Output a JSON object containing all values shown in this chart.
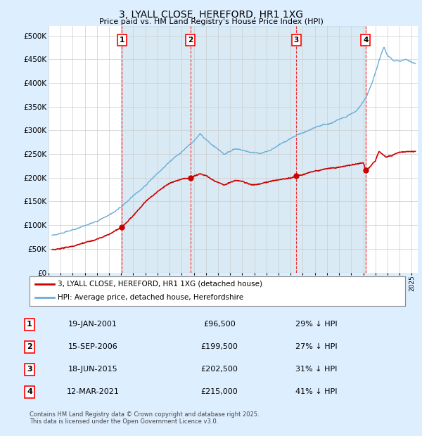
{
  "title": "3, LYALL CLOSE, HEREFORD, HR1 1XG",
  "subtitle": "Price paid vs. HM Land Registry's House Price Index (HPI)",
  "ylabel_ticks": [
    "£0",
    "£50K",
    "£100K",
    "£150K",
    "£200K",
    "£250K",
    "£300K",
    "£350K",
    "£400K",
    "£450K",
    "£500K"
  ],
  "ytick_values": [
    0,
    50000,
    100000,
    150000,
    200000,
    250000,
    300000,
    350000,
    400000,
    450000,
    500000
  ],
  "ylim": [
    0,
    520000
  ],
  "xlim_start": 1995.3,
  "xlim_end": 2025.5,
  "sale_dates": [
    2001.05,
    2006.71,
    2015.46,
    2021.19
  ],
  "sale_prices": [
    96500,
    199500,
    202500,
    215000
  ],
  "sale_labels": [
    "1",
    "2",
    "3",
    "4"
  ],
  "sale_date_labels": [
    "19-JAN-2001",
    "15-SEP-2006",
    "18-JUN-2015",
    "12-MAR-2021"
  ],
  "sale_price_labels": [
    "£96,500",
    "£199,500",
    "£202,500",
    "£215,000"
  ],
  "sale_pct_labels": [
    "29% ↓ HPI",
    "27% ↓ HPI",
    "31% ↓ HPI",
    "41% ↓ HPI"
  ],
  "hpi_color": "#6baed6",
  "price_color": "#cc0000",
  "shade_color": "#ddeeff",
  "legend_label_price": "3, LYALL CLOSE, HEREFORD, HR1 1XG (detached house)",
  "legend_label_hpi": "HPI: Average price, detached house, Herefordshire",
  "footnote": "Contains HM Land Registry data © Crown copyright and database right 2025.\nThis data is licensed under the Open Government Licence v3.0.",
  "background_color": "#ddeeff",
  "plot_bg_color": "#ffffff"
}
